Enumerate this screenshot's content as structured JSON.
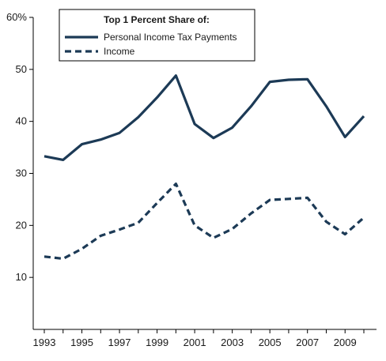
{
  "chart_data": {
    "type": "line",
    "title": "",
    "xlabel": "",
    "ylabel": "",
    "x": [
      1993,
      1994,
      1995,
      1996,
      1997,
      1998,
      1999,
      2000,
      2001,
      2002,
      2003,
      2004,
      2005,
      2006,
      2007,
      2008,
      2009,
      2010
    ],
    "ylim": [
      0,
      60
    ],
    "xlim": [
      1993,
      2010
    ],
    "y_ticks": [
      10,
      20,
      30,
      40,
      50,
      60
    ],
    "y_tick_labels": [
      "10",
      "20",
      "30",
      "40",
      "50",
      "60%"
    ],
    "x_ticks": [
      1993,
      1995,
      1997,
      1999,
      2001,
      2003,
      2005,
      2007,
      2009
    ],
    "x_tick_labels": [
      "1993",
      "1995",
      "1997",
      "1999",
      "2001",
      "2003",
      "2005",
      "2007",
      "2009"
    ],
    "grid": false,
    "legend": {
      "title": "Top 1 Percent Share of:",
      "placement": "top-left"
    },
    "series": [
      {
        "name": "Personal Income Tax Payments",
        "style": "solid",
        "color": "#1c3a56",
        "values": [
          33.3,
          32.6,
          35.6,
          36.5,
          37.8,
          40.8,
          44.6,
          48.8,
          39.5,
          36.8,
          38.8,
          42.9,
          47.6,
          48.0,
          48.1,
          42.9,
          37.0,
          41.0
        ]
      },
      {
        "name": "Income",
        "style": "dashed",
        "color": "#1c3a56",
        "values": [
          14.0,
          13.6,
          15.5,
          18.0,
          19.2,
          20.5,
          24.3,
          28.0,
          20.0,
          17.6,
          19.3,
          22.3,
          24.9,
          25.1,
          25.3,
          20.7,
          18.3,
          21.5
        ]
      }
    ]
  }
}
